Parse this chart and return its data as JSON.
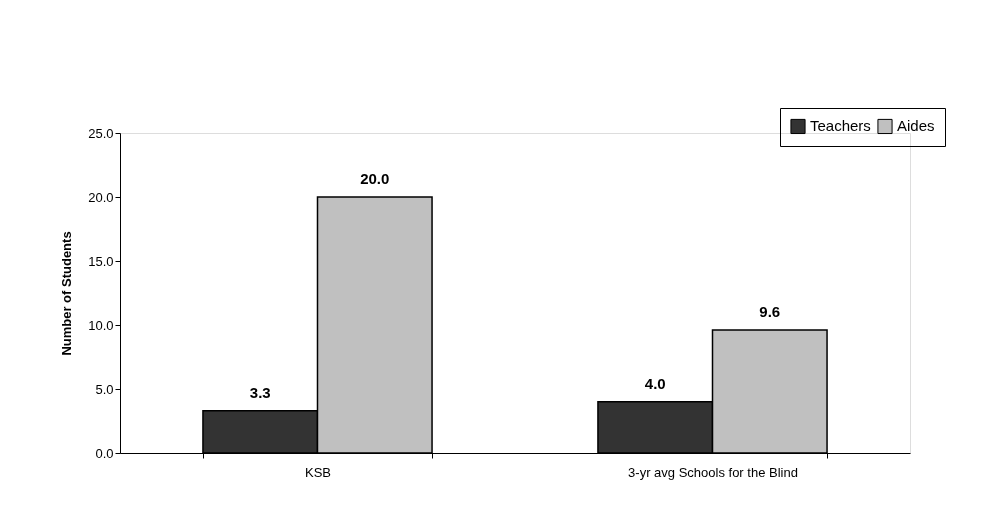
{
  "chart_data": {
    "type": "bar",
    "ylabel": "Number of Students",
    "categories": [
      "KSB",
      "3-yr avg Schools for the Blind"
    ],
    "series": [
      {
        "name": "Teachers",
        "color": "#333333",
        "values": [
          3.3,
          4.0
        ],
        "value_labels": [
          "3.3",
          "4.0"
        ]
      },
      {
        "name": "Aides",
        "color": "#c0c0c0",
        "values": [
          20.0,
          9.6
        ],
        "value_labels": [
          "20.0",
          "9.6"
        ]
      }
    ],
    "ylim": [
      0,
      25
    ],
    "yticks": [
      {
        "value": 0,
        "label": "0.0"
      },
      {
        "value": 5,
        "label": "5.0"
      },
      {
        "value": 10,
        "label": "10.0"
      },
      {
        "value": 15,
        "label": "15.0"
      },
      {
        "value": 20,
        "label": "20.0"
      },
      {
        "value": 25,
        "label": "25.0"
      }
    ],
    "grid": false,
    "legend": "top right"
  }
}
